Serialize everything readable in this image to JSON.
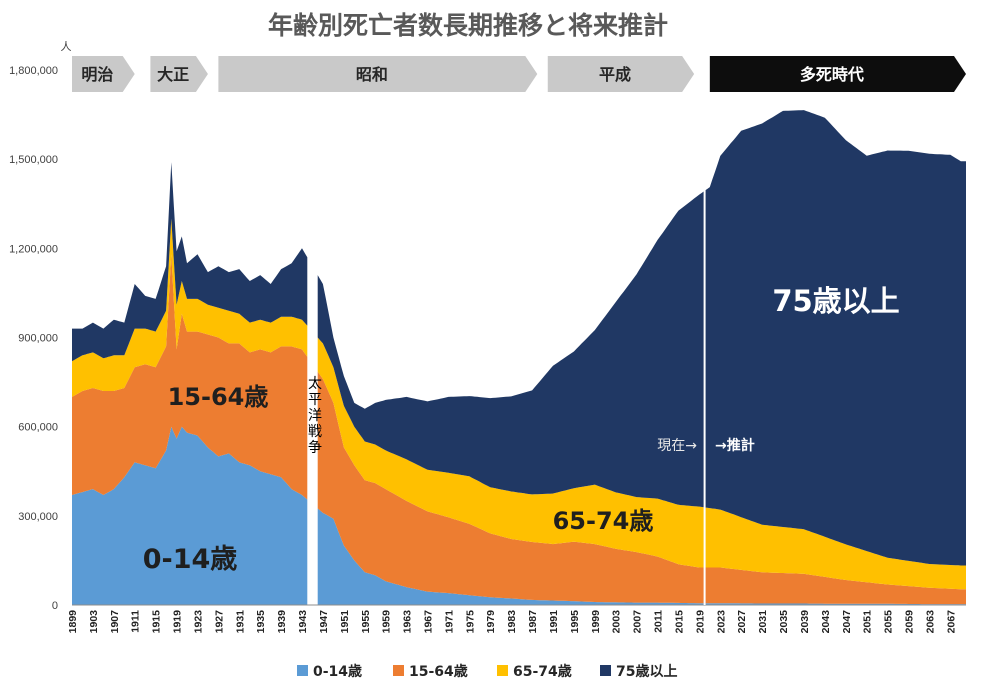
{
  "chart_data": {
    "type": "area",
    "stacked": true,
    "title": "年齢別死亡者数長期推移と将来推計",
    "ylabel": "人",
    "xlabel": "",
    "ylim": [
      0,
      1800000
    ],
    "xlim": [
      1899,
      2070
    ],
    "y_ticks": [
      {
        "value": 0,
        "label": "0"
      },
      {
        "value": 300000,
        "label": "300,000"
      },
      {
        "value": 600000,
        "label": "600,000"
      },
      {
        "value": 900000,
        "label": "900,000"
      },
      {
        "value": 1200000,
        "label": "1,200,000"
      },
      {
        "value": 1500000,
        "label": "1,500,000"
      },
      {
        "value": 1800000,
        "label": "1,800,000"
      }
    ],
    "x_ticks": [
      "1899",
      "1903",
      "1907",
      "1911",
      "1915",
      "1919",
      "1923",
      "1927",
      "1931",
      "1935",
      "1939",
      "1943",
      "1947",
      "1951",
      "1955",
      "1959",
      "1963",
      "1967",
      "1971",
      "1975",
      "1979",
      "1983",
      "1987",
      "1991",
      "1995",
      "1999",
      "2003",
      "2007",
      "2011",
      "2015",
      "2019",
      "2023",
      "2027",
      "2031",
      "2035",
      "2039",
      "2043",
      "2047",
      "2051",
      "2055",
      "2059",
      "2063",
      "2067"
    ],
    "grid": false,
    "legend_position": "bottom",
    "colors": {
      "age_0_14": "#5B9BD5",
      "age_15_64": "#ED7D31",
      "age_65_74": "#FFC000",
      "age_75_plus": "#203864"
    },
    "gap_years": [
      1944,
      1946
    ],
    "series": [
      {
        "name": "0-14歳",
        "color": "#5B9BD5",
        "points": [
          [
            1899,
            370000
          ],
          [
            1901,
            380000
          ],
          [
            1903,
            390000
          ],
          [
            1905,
            370000
          ],
          [
            1907,
            390000
          ],
          [
            1909,
            430000
          ],
          [
            1911,
            480000
          ],
          [
            1913,
            470000
          ],
          [
            1915,
            460000
          ],
          [
            1917,
            520000
          ],
          [
            1918,
            600000
          ],
          [
            1919,
            560000
          ],
          [
            1920,
            600000
          ],
          [
            1921,
            580000
          ],
          [
            1923,
            570000
          ],
          [
            1925,
            530000
          ],
          [
            1927,
            500000
          ],
          [
            1929,
            510000
          ],
          [
            1931,
            480000
          ],
          [
            1933,
            470000
          ],
          [
            1935,
            450000
          ],
          [
            1937,
            440000
          ],
          [
            1939,
            430000
          ],
          [
            1941,
            390000
          ],
          [
            1943,
            370000
          ],
          [
            1947,
            310000
          ],
          [
            1949,
            290000
          ],
          [
            1951,
            200000
          ],
          [
            1953,
            150000
          ],
          [
            1955,
            110000
          ],
          [
            1957,
            100000
          ],
          [
            1959,
            80000
          ],
          [
            1963,
            60000
          ],
          [
            1967,
            45000
          ],
          [
            1971,
            40000
          ],
          [
            1975,
            33000
          ],
          [
            1979,
            26000
          ],
          [
            1983,
            22000
          ],
          [
            1987,
            17000
          ],
          [
            1991,
            15000
          ],
          [
            1995,
            13000
          ],
          [
            1999,
            10000
          ],
          [
            2003,
            9000
          ],
          [
            2007,
            8000
          ],
          [
            2011,
            8000
          ],
          [
            2015,
            7000
          ],
          [
            2019,
            6000
          ],
          [
            2023,
            6000
          ],
          [
            2031,
            5000
          ],
          [
            2039,
            5000
          ],
          [
            2047,
            4000
          ],
          [
            2055,
            4000
          ],
          [
            2063,
            3000
          ],
          [
            2069,
            3000
          ]
        ]
      },
      {
        "name": "15-64歳",
        "color": "#ED7D31",
        "points": [
          [
            1899,
            330000
          ],
          [
            1901,
            340000
          ],
          [
            1903,
            340000
          ],
          [
            1905,
            350000
          ],
          [
            1907,
            330000
          ],
          [
            1909,
            300000
          ],
          [
            1911,
            320000
          ],
          [
            1913,
            340000
          ],
          [
            1915,
            340000
          ],
          [
            1917,
            350000
          ],
          [
            1918,
            580000
          ],
          [
            1919,
            300000
          ],
          [
            1920,
            380000
          ],
          [
            1921,
            340000
          ],
          [
            1923,
            350000
          ],
          [
            1925,
            380000
          ],
          [
            1927,
            400000
          ],
          [
            1929,
            370000
          ],
          [
            1931,
            400000
          ],
          [
            1933,
            380000
          ],
          [
            1935,
            410000
          ],
          [
            1937,
            410000
          ],
          [
            1939,
            440000
          ],
          [
            1941,
            480000
          ],
          [
            1943,
            490000
          ],
          [
            1947,
            450000
          ],
          [
            1949,
            390000
          ],
          [
            1951,
            330000
          ],
          [
            1953,
            320000
          ],
          [
            1955,
            310000
          ],
          [
            1957,
            310000
          ],
          [
            1959,
            310000
          ],
          [
            1963,
            290000
          ],
          [
            1967,
            270000
          ],
          [
            1971,
            255000
          ],
          [
            1975,
            240000
          ],
          [
            1979,
            215000
          ],
          [
            1983,
            200000
          ],
          [
            1987,
            195000
          ],
          [
            1991,
            190000
          ],
          [
            1995,
            200000
          ],
          [
            1999,
            195000
          ],
          [
            2003,
            180000
          ],
          [
            2007,
            170000
          ],
          [
            2011,
            155000
          ],
          [
            2015,
            130000
          ],
          [
            2019,
            120000
          ],
          [
            2023,
            120000
          ],
          [
            2031,
            105000
          ],
          [
            2039,
            100000
          ],
          [
            2047,
            80000
          ],
          [
            2055,
            65000
          ],
          [
            2063,
            55000
          ],
          [
            2069,
            50000
          ]
        ]
      },
      {
        "name": "65-74歳",
        "color": "#FFC000",
        "points": [
          [
            1899,
            120000
          ],
          [
            1901,
            120000
          ],
          [
            1903,
            120000
          ],
          [
            1905,
            110000
          ],
          [
            1907,
            120000
          ],
          [
            1909,
            110000
          ],
          [
            1911,
            130000
          ],
          [
            1913,
            120000
          ],
          [
            1915,
            120000
          ],
          [
            1917,
            120000
          ],
          [
            1918,
            120000
          ],
          [
            1919,
            150000
          ],
          [
            1920,
            110000
          ],
          [
            1921,
            110000
          ],
          [
            1923,
            110000
          ],
          [
            1925,
            100000
          ],
          [
            1927,
            100000
          ],
          [
            1929,
            110000
          ],
          [
            1931,
            100000
          ],
          [
            1933,
            100000
          ],
          [
            1935,
            100000
          ],
          [
            1937,
            100000
          ],
          [
            1939,
            100000
          ],
          [
            1941,
            100000
          ],
          [
            1943,
            100000
          ],
          [
            1947,
            120000
          ],
          [
            1949,
            120000
          ],
          [
            1951,
            140000
          ],
          [
            1953,
            130000
          ],
          [
            1955,
            130000
          ],
          [
            1957,
            130000
          ],
          [
            1959,
            130000
          ],
          [
            1963,
            140000
          ],
          [
            1967,
            140000
          ],
          [
            1971,
            150000
          ],
          [
            1975,
            160000
          ],
          [
            1979,
            155000
          ],
          [
            1983,
            160000
          ],
          [
            1987,
            160000
          ],
          [
            1991,
            170000
          ],
          [
            1995,
            180000
          ],
          [
            1999,
            200000
          ],
          [
            2003,
            190000
          ],
          [
            2007,
            185000
          ],
          [
            2011,
            195000
          ],
          [
            2015,
            200000
          ],
          [
            2019,
            205000
          ],
          [
            2023,
            195000
          ],
          [
            2031,
            160000
          ],
          [
            2039,
            150000
          ],
          [
            2047,
            120000
          ],
          [
            2055,
            90000
          ],
          [
            2063,
            80000
          ],
          [
            2069,
            80000
          ]
        ]
      },
      {
        "name": "75歳以上",
        "color": "#203864",
        "points": [
          [
            1899,
            110000
          ],
          [
            1901,
            90000
          ],
          [
            1903,
            100000
          ],
          [
            1905,
            100000
          ],
          [
            1907,
            120000
          ],
          [
            1909,
            110000
          ],
          [
            1911,
            150000
          ],
          [
            1913,
            110000
          ],
          [
            1915,
            110000
          ],
          [
            1917,
            150000
          ],
          [
            1918,
            190000
          ],
          [
            1919,
            180000
          ],
          [
            1920,
            150000
          ],
          [
            1921,
            120000
          ],
          [
            1923,
            150000
          ],
          [
            1925,
            110000
          ],
          [
            1927,
            140000
          ],
          [
            1929,
            130000
          ],
          [
            1931,
            150000
          ],
          [
            1933,
            140000
          ],
          [
            1935,
            150000
          ],
          [
            1937,
            130000
          ],
          [
            1939,
            160000
          ],
          [
            1941,
            180000
          ],
          [
            1943,
            240000
          ],
          [
            1947,
            200000
          ],
          [
            1949,
            100000
          ],
          [
            1951,
            100000
          ],
          [
            1953,
            80000
          ],
          [
            1955,
            110000
          ],
          [
            1957,
            140000
          ],
          [
            1959,
            170000
          ],
          [
            1963,
            210000
          ],
          [
            1967,
            230000
          ],
          [
            1971,
            255000
          ],
          [
            1975,
            270000
          ],
          [
            1979,
            300000
          ],
          [
            1983,
            320000
          ],
          [
            1987,
            350000
          ],
          [
            1991,
            430000
          ],
          [
            1995,
            460000
          ],
          [
            1999,
            520000
          ],
          [
            2003,
            640000
          ],
          [
            2007,
            750000
          ],
          [
            2011,
            870000
          ],
          [
            2015,
            990000
          ],
          [
            2019,
            1050000
          ],
          [
            2021,
            1080000
          ],
          [
            2023,
            1190000
          ],
          [
            2027,
            1300000
          ],
          [
            2031,
            1350000
          ],
          [
            2035,
            1400000
          ],
          [
            2039,
            1410000
          ],
          [
            2043,
            1410000
          ],
          [
            2047,
            1360000
          ],
          [
            2051,
            1330000
          ],
          [
            2055,
            1370000
          ],
          [
            2059,
            1380000
          ],
          [
            2063,
            1380000
          ],
          [
            2067,
            1380000
          ],
          [
            2069,
            1360000
          ]
        ]
      }
    ],
    "eras": [
      {
        "label": "明治",
        "dark": false
      },
      {
        "label": "大正",
        "dark": false
      },
      {
        "label": "昭和",
        "dark": false
      },
      {
        "label": "平成",
        "dark": false
      },
      {
        "label": "多死時代",
        "dark": true
      }
    ],
    "annotations": {
      "war": "太平洋戦争",
      "current": "現在→",
      "projection": "→推計",
      "label_0_14": "0-14歳",
      "label_15_64": "15-64歳",
      "label_65_74": "65-74歳",
      "label_75_plus": "75歳以上"
    },
    "legend": [
      {
        "label": "0-14歳",
        "color": "#5B9BD5"
      },
      {
        "label": "15-64歳",
        "color": "#ED7D31"
      },
      {
        "label": "65-74歳",
        "color": "#FFC000"
      },
      {
        "label": "75歳以上",
        "color": "#203864"
      }
    ]
  }
}
